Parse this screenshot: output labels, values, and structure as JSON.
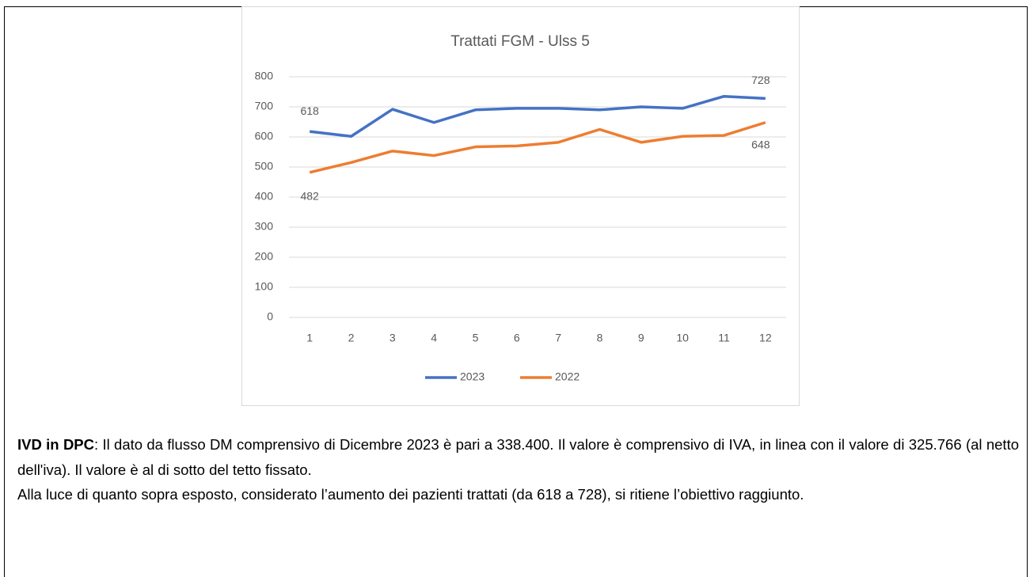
{
  "chart_data": {
    "type": "line",
    "title": "Trattati FGM - Ulss 5",
    "categories": [
      1,
      2,
      3,
      4,
      5,
      6,
      7,
      8,
      9,
      10,
      11,
      12
    ],
    "series": [
      {
        "name": "2023",
        "color": "#4472c4",
        "values": [
          618,
          602,
          692,
          648,
          690,
          695,
          695,
          690,
          700,
          695,
          735,
          728
        ],
        "value_labels": [
          "618",
          null,
          null,
          null,
          null,
          null,
          null,
          null,
          null,
          null,
          null,
          "728"
        ]
      },
      {
        "name": "2022",
        "color": "#ed7d31",
        "values": [
          482,
          515,
          553,
          538,
          567,
          570,
          582,
          625,
          582,
          602,
          605,
          648
        ],
        "value_labels": [
          "482",
          null,
          null,
          null,
          null,
          null,
          null,
          null,
          null,
          null,
          null,
          "648"
        ]
      }
    ],
    "ylim": [
      0,
      800
    ],
    "yticks": [
      0,
      100,
      200,
      300,
      400,
      500,
      600,
      700,
      800
    ],
    "grid": true,
    "legend": "bottom"
  },
  "paragraphs": [
    [
      {
        "text": "IVD in DPC",
        "bold": true
      },
      {
        "text": ": Il dato da flusso DM comprensivo di Dicembre 2023 è pari a 338.400. Il valore è comprensivo di IVA, in linea con il valore di 325.766 (al netto dell'iva). Il valore è al di sotto del tetto fissato."
      }
    ],
    [
      {
        "text": "Alla luce di quanto sopra esposto, considerato l’aumento dei pazienti trattati (da 618 a 728), si ritiene l’obiettivo raggiunto."
      }
    ]
  ]
}
